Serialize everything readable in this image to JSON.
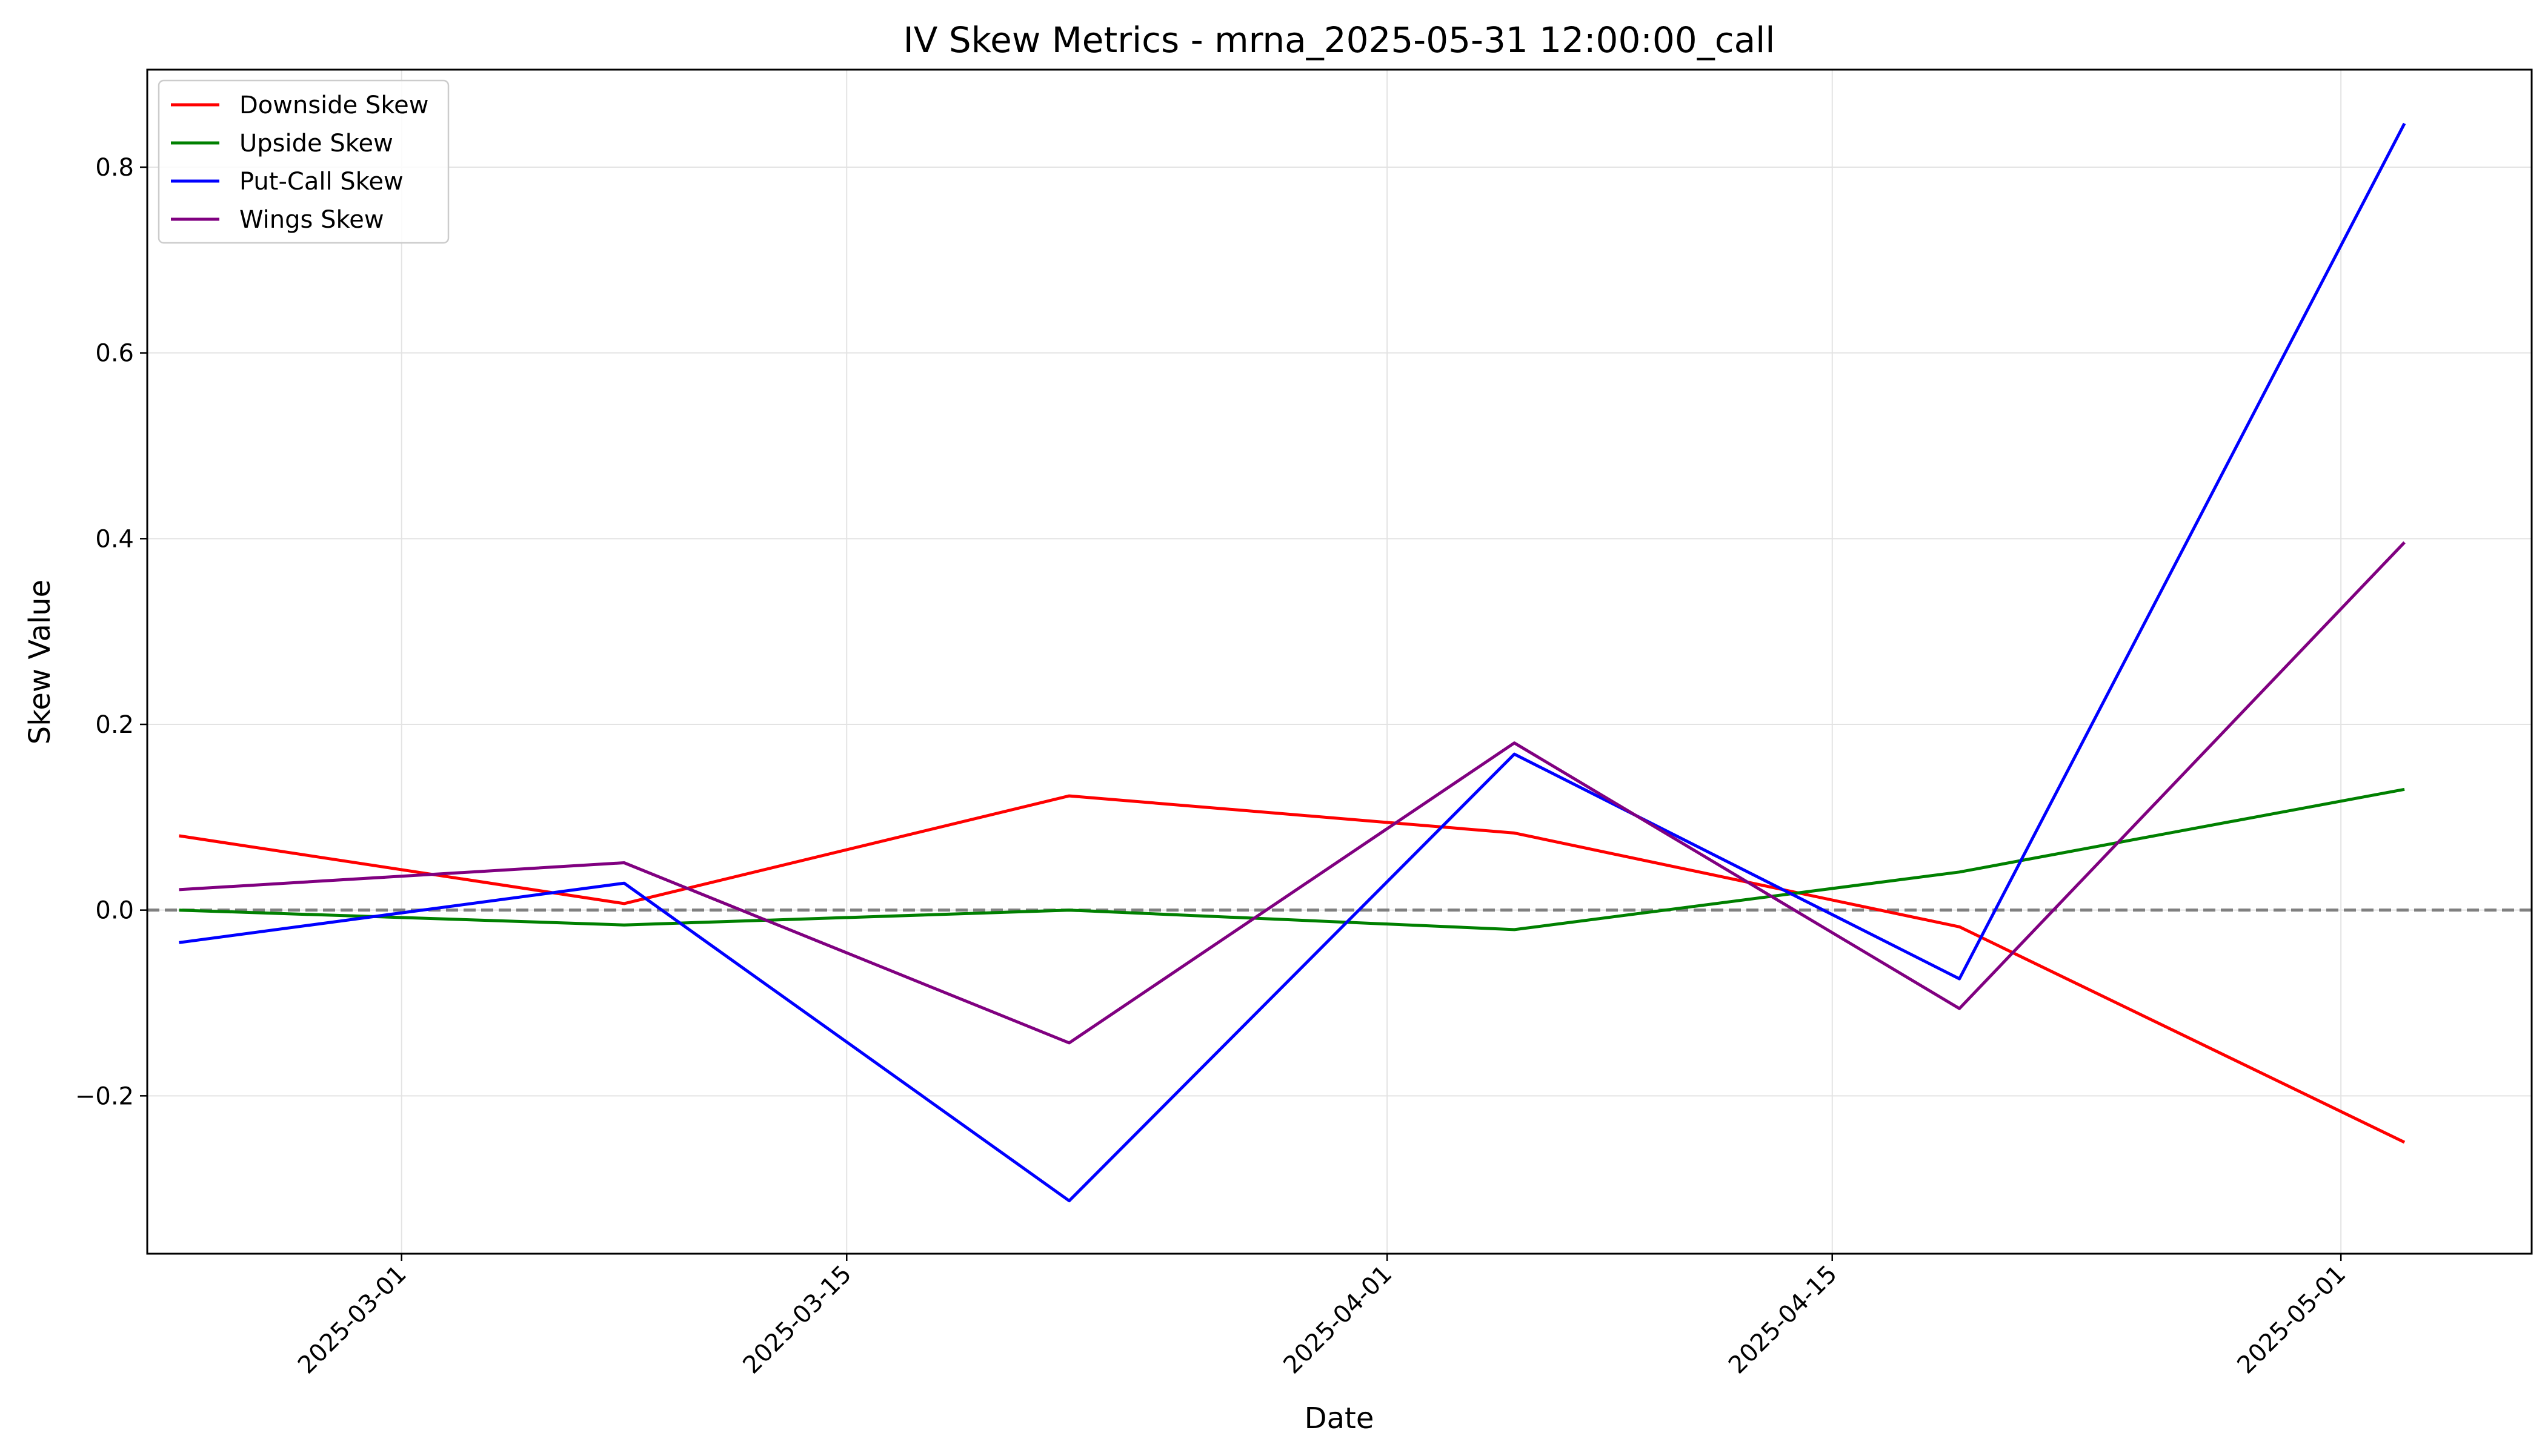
{
  "chart_data": {
    "type": "line",
    "title": "IV Skew Metrics - mrna_2025-05-31 12:00:00_call",
    "xlabel": "Date",
    "ylabel": "Skew Value",
    "x": [
      "2025-02-22",
      "2025-03-08",
      "2025-03-22",
      "2025-04-05",
      "2025-04-19",
      "2025-05-03"
    ],
    "xlim": [
      "2025-02-21",
      "2025-05-07"
    ],
    "ylim": [
      -0.37,
      0.905
    ],
    "xticks": [
      "2025-03-01",
      "2025-03-15",
      "2025-04-01",
      "2025-04-15",
      "2025-05-01"
    ],
    "yticks": [
      -0.2,
      0.0,
      0.2,
      0.4,
      0.6,
      0.8
    ],
    "ytick_labels": [
      "−0.2",
      "0.0",
      "0.2",
      "0.4",
      "0.6",
      "0.8"
    ],
    "grid": true,
    "legend_position": "upper left",
    "reference_line": {
      "y": 0,
      "style": "dashed",
      "color": "#808080"
    },
    "series": [
      {
        "name": "Downside Skew",
        "color": "#ff0000",
        "values": [
          0.08,
          0.007,
          0.123,
          0.083,
          -0.018,
          -0.25
        ]
      },
      {
        "name": "Upside Skew",
        "color": "#008000",
        "values": [
          0.0,
          -0.016,
          0.0,
          -0.021,
          0.041,
          0.13
        ]
      },
      {
        "name": "Put-Call Skew",
        "color": "#0000ff",
        "values": [
          -0.035,
          0.029,
          -0.313,
          0.168,
          -0.074,
          0.847
        ]
      },
      {
        "name": "Wings Skew",
        "color": "#800080",
        "values": [
          0.022,
          0.051,
          -0.143,
          0.18,
          -0.106,
          0.396
        ]
      }
    ]
  }
}
